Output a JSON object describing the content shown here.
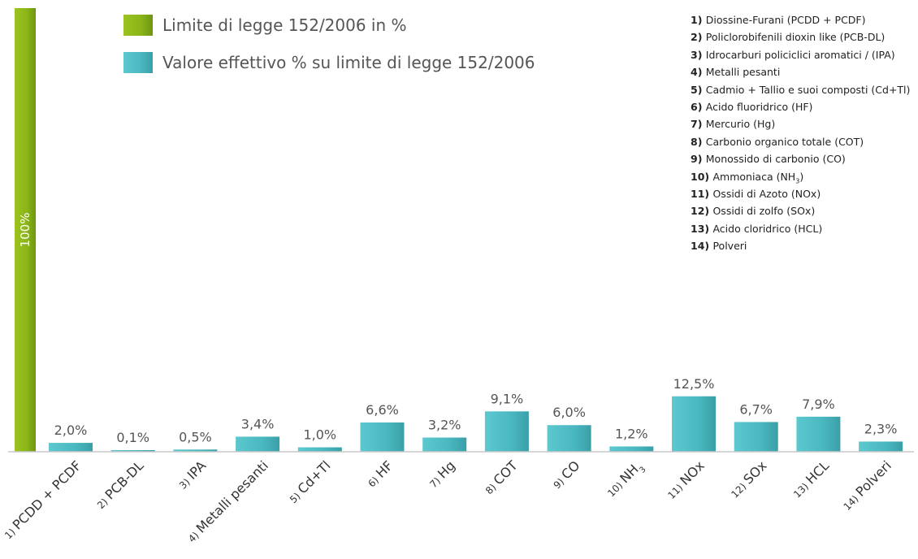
{
  "chart_data": {
    "type": "bar",
    "categories": [
      "1) PCDD + PCDF",
      "2) PCB-DL",
      "3) IPA",
      "4) Metalli pesanti",
      "5) Cd+Tl",
      "6) HF",
      "7) Hg",
      "8) COT",
      "9) CO",
      "10) NH3",
      "11) NOx",
      "12) SOx",
      "13) HCL",
      "14) Polveri"
    ],
    "values": [
      2.0,
      0.1,
      0.5,
      3.4,
      1.0,
      6.6,
      3.2,
      9.1,
      6.0,
      1.2,
      12.5,
      6.7,
      7.9,
      2.3
    ],
    "value_labels": [
      "2,0%",
      "0,1%",
      "0,5%",
      "3,4%",
      "1,0%",
      "6,6%",
      "3,2%",
      "9,1%",
      "6,0%",
      "1,2%",
      "12,5%",
      "6,7%",
      "7,9%",
      "2,3%"
    ],
    "limit": {
      "value": 100,
      "label": "100%"
    },
    "ylim": [
      0,
      100
    ],
    "grid": false,
    "series": [
      {
        "name": "Limite di legge 152/2006 in %",
        "color": "#8cb31a"
      },
      {
        "name": "Valore effettivo % su limite di legge 152/2006",
        "color": "#4fbcc4"
      }
    ],
    "legend_position": "top-left",
    "notes": [
      {
        "num": "1)",
        "text": "Diossine-Furani (PCDD + PCDF)"
      },
      {
        "num": "2)",
        "text": "Policlorobifenili dioxin like (PCB-DL)"
      },
      {
        "num": "3)",
        "text": "Idrocarburi policiclici aromatici / (IPA)"
      },
      {
        "num": "4)",
        "text": "Metalli pesanti"
      },
      {
        "num": "5)",
        "text": "Cadmio + Tallio e suoi composti (Cd+Tl)"
      },
      {
        "num": "6)",
        "text": "Acido fluoridrico (HF)"
      },
      {
        "num": "7)",
        "text": "Mercurio (Hg)"
      },
      {
        "num": "8)",
        "text": "Carbonio organico totale (COT)"
      },
      {
        "num": "9)",
        "text": "Monossido di carbonio (CO)"
      },
      {
        "num": "10)",
        "text": "Ammoniaca (NH",
        "sub": "3",
        "after": ")"
      },
      {
        "num": "11)",
        "text": "Ossidi di Azoto (NOx)"
      },
      {
        "num": "12)",
        "text": "Ossidi di zolfo (SOx)"
      },
      {
        "num": "13)",
        "text": "Acido cloridrico (HCL)"
      },
      {
        "num": "14)",
        "text": "Polveri"
      }
    ]
  }
}
